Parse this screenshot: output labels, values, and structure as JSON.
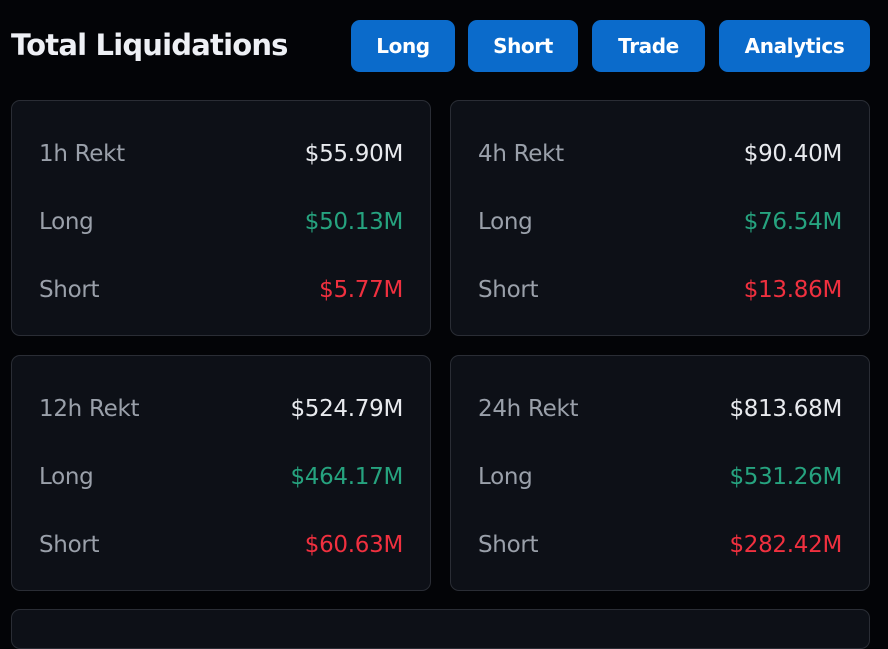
{
  "header": {
    "title": "Total Liquidations",
    "buttons": [
      "Long",
      "Short",
      "Trade",
      "Analytics"
    ]
  },
  "colors": {
    "accent": "#0b6bcb",
    "long": "#26a37f",
    "short": "#f0303f"
  },
  "cards": [
    {
      "label": "1h Rekt",
      "total": "$55.90M",
      "long_label": "Long",
      "long": "$50.13M",
      "short_label": "Short",
      "short": "$5.77M"
    },
    {
      "label": "4h Rekt",
      "total": "$90.40M",
      "long_label": "Long",
      "long": "$76.54M",
      "short_label": "Short",
      "short": "$13.86M"
    },
    {
      "label": "12h Rekt",
      "total": "$524.79M",
      "long_label": "Long",
      "long": "$464.17M",
      "short_label": "Short",
      "short": "$60.63M"
    },
    {
      "label": "24h Rekt",
      "total": "$813.68M",
      "long_label": "Long",
      "long": "$531.26M",
      "short_label": "Short",
      "short": "$282.42M"
    }
  ]
}
